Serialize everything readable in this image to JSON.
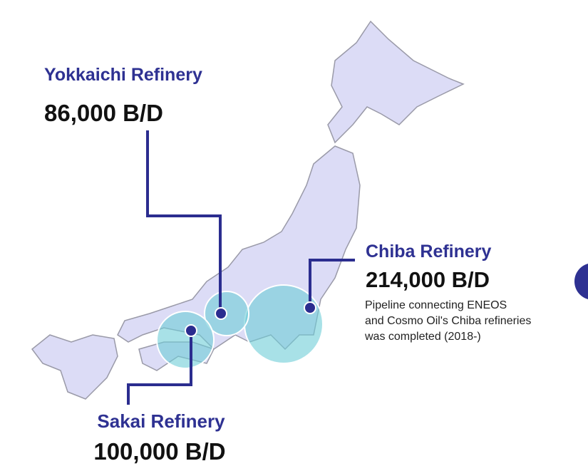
{
  "refineries": [
    {
      "name": "Yokkaichi Refinery",
      "capacity": "86,000 B/D"
    },
    {
      "name": "Chiba Refinery",
      "capacity": "214,000 B/D",
      "note": [
        "Pipeline connecting ENEOS",
        "and Cosmo Oil's Chiba refineries",
        "was completed (2018-)"
      ]
    },
    {
      "name": "Sakai Refinery",
      "capacity": "100,000 B/D"
    }
  ]
}
